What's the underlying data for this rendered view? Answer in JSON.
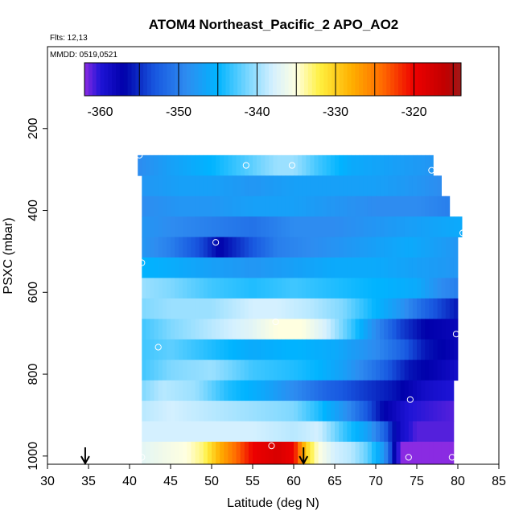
{
  "chart_data": {
    "type": "heatmap",
    "title": "ATOM4 Northeast_Pacific_2 APO_AO2",
    "annotations": {
      "flights": "Flts: 12,13",
      "dates": "MMDD: 0519,0521"
    },
    "xlabel": "Latitude (deg N)",
    "ylabel": "PSXC (mbar)",
    "xlim": [
      30,
      85
    ],
    "ylim": [
      1020,
      0
    ],
    "x_ticks": [
      30,
      35,
      40,
      45,
      50,
      55,
      60,
      65,
      70,
      75,
      80,
      85
    ],
    "y_ticks": [
      200,
      400,
      600,
      800,
      1000
    ],
    "colorbar": {
      "range": [
        -362,
        -314
      ],
      "ticks": [
        -360,
        -350,
        -340,
        -330,
        -320
      ],
      "tick_labels": [
        "-360",
        "-350",
        "-340",
        "-330",
        "-320"
      ],
      "stops": [
        {
          "v": -362,
          "c": "#8a2be2"
        },
        {
          "v": -360,
          "c": "#1e14d6"
        },
        {
          "v": -357,
          "c": "#0000aa"
        },
        {
          "v": -353,
          "c": "#1858e0"
        },
        {
          "v": -349,
          "c": "#2e8cf0"
        },
        {
          "v": -345,
          "c": "#00b4ff"
        },
        {
          "v": -341,
          "c": "#7fd8ff"
        },
        {
          "v": -338,
          "c": "#d4f0ff"
        },
        {
          "v": -335,
          "c": "#ffffe0"
        },
        {
          "v": -332,
          "c": "#fff040"
        },
        {
          "v": -328,
          "c": "#ffb000"
        },
        {
          "v": -324,
          "c": "#ff6a00"
        },
        {
          "v": -320,
          "c": "#ee0000"
        },
        {
          "v": -316,
          "c": "#c00000"
        },
        {
          "v": -314,
          "c": "#a01818"
        }
      ]
    },
    "grid": false,
    "lat_step": 0.5,
    "layers": [
      {
        "p_top": 265,
        "p_bot": 315,
        "lat0": 41,
        "lat1": 77,
        "ctrl": [
          [
            41,
            -349
          ],
          [
            45,
            -347
          ],
          [
            50,
            -345
          ],
          [
            55,
            -342
          ],
          [
            58,
            -340
          ],
          [
            60,
            -340
          ],
          [
            63,
            -343
          ],
          [
            67,
            -346
          ],
          [
            72,
            -347
          ],
          [
            77,
            -348
          ]
        ]
      },
      {
        "p_top": 315,
        "p_bot": 365,
        "lat0": 41.5,
        "lat1": 78,
        "ctrl": [
          [
            41.5,
            -348
          ],
          [
            46,
            -347
          ],
          [
            50,
            -347
          ],
          [
            55,
            -348
          ],
          [
            60,
            -347
          ],
          [
            65,
            -347
          ],
          [
            70,
            -347
          ],
          [
            75,
            -348
          ],
          [
            78,
            -349
          ]
        ]
      },
      {
        "p_top": 365,
        "p_bot": 415,
        "lat0": 41.5,
        "lat1": 79,
        "ctrl": [
          [
            41.5,
            -349
          ],
          [
            46,
            -348
          ],
          [
            50,
            -348
          ],
          [
            55,
            -347
          ],
          [
            60,
            -347
          ],
          [
            65,
            -348
          ],
          [
            70,
            -349
          ],
          [
            75,
            -349
          ],
          [
            79,
            -350
          ]
        ]
      },
      {
        "p_top": 415,
        "p_bot": 465,
        "lat0": 41.5,
        "lat1": 80.5,
        "ctrl": [
          [
            41.5,
            -348
          ],
          [
            45,
            -349
          ],
          [
            50,
            -350
          ],
          [
            55,
            -351
          ],
          [
            60,
            -349
          ],
          [
            65,
            -349
          ],
          [
            70,
            -348
          ],
          [
            75,
            -347
          ],
          [
            80.5,
            -346
          ]
        ]
      },
      {
        "p_top": 465,
        "p_bot": 515,
        "lat0": 41.5,
        "lat1": 80,
        "ctrl": [
          [
            41.5,
            -348
          ],
          [
            45,
            -350
          ],
          [
            49,
            -354
          ],
          [
            51,
            -357
          ],
          [
            54,
            -354
          ],
          [
            58,
            -350
          ],
          [
            62,
            -349
          ],
          [
            66,
            -348
          ],
          [
            70,
            -347
          ],
          [
            74,
            -346
          ],
          [
            80,
            -348
          ]
        ]
      },
      {
        "p_top": 515,
        "p_bot": 565,
        "lat0": 41.5,
        "lat1": 80,
        "ctrl": [
          [
            41.5,
            -345
          ],
          [
            46,
            -346
          ],
          [
            50,
            -347
          ],
          [
            55,
            -348
          ],
          [
            60,
            -347
          ],
          [
            65,
            -346
          ],
          [
            70,
            -346
          ],
          [
            75,
            -347
          ],
          [
            80,
            -348
          ]
        ]
      },
      {
        "p_top": 565,
        "p_bot": 615,
        "lat0": 41.5,
        "lat1": 80,
        "ctrl": [
          [
            41.5,
            -340
          ],
          [
            45,
            -341
          ],
          [
            50,
            -343
          ],
          [
            55,
            -344
          ],
          [
            60,
            -343
          ],
          [
            65,
            -344
          ],
          [
            70,
            -345
          ],
          [
            75,
            -346
          ],
          [
            78,
            -349
          ],
          [
            80,
            -350
          ]
        ]
      },
      {
        "p_top": 615,
        "p_bot": 665,
        "lat0": 41.5,
        "lat1": 80,
        "ctrl": [
          [
            41.5,
            -341
          ],
          [
            45,
            -340
          ],
          [
            50,
            -340
          ],
          [
            55,
            -338
          ],
          [
            58,
            -338
          ],
          [
            62,
            -339
          ],
          [
            66,
            -341
          ],
          [
            70,
            -345
          ],
          [
            73,
            -348
          ],
          [
            76,
            -352
          ],
          [
            80,
            -356
          ]
        ]
      },
      {
        "p_top": 665,
        "p_bot": 715,
        "lat0": 41.5,
        "lat1": 80,
        "ctrl": [
          [
            41.5,
            -343
          ],
          [
            45,
            -341
          ],
          [
            50,
            -339
          ],
          [
            55,
            -337
          ],
          [
            58,
            -335
          ],
          [
            61,
            -335
          ],
          [
            64,
            -338
          ],
          [
            67,
            -343
          ],
          [
            70,
            -349
          ],
          [
            73,
            -354
          ],
          [
            76,
            -357
          ],
          [
            80,
            -358
          ]
        ]
      },
      {
        "p_top": 715,
        "p_bot": 765,
        "lat0": 41.5,
        "lat1": 80,
        "ctrl": [
          [
            41.5,
            -343
          ],
          [
            45,
            -342
          ],
          [
            50,
            -344
          ],
          [
            55,
            -346
          ],
          [
            60,
            -345
          ],
          [
            65,
            -346
          ],
          [
            70,
            -349
          ],
          [
            73,
            -352
          ],
          [
            76,
            -356
          ],
          [
            80,
            -358
          ]
        ]
      },
      {
        "p_top": 765,
        "p_bot": 815,
        "lat0": 41.5,
        "lat1": 80,
        "ctrl": [
          [
            41.5,
            -343
          ],
          [
            45,
            -341
          ],
          [
            50,
            -340
          ],
          [
            55,
            -343
          ],
          [
            60,
            -344
          ],
          [
            63,
            -345
          ],
          [
            66,
            -347
          ],
          [
            70,
            -351
          ],
          [
            74,
            -356
          ],
          [
            78,
            -358
          ],
          [
            80,
            -359
          ]
        ]
      },
      {
        "p_top": 815,
        "p_bot": 865,
        "lat0": 41.5,
        "lat1": 79.5,
        "ctrl": [
          [
            41.5,
            -341
          ],
          [
            44,
            -339
          ],
          [
            48,
            -340
          ],
          [
            52,
            -344
          ],
          [
            56,
            -346
          ],
          [
            60,
            -349
          ],
          [
            64,
            -352
          ],
          [
            68,
            -354
          ],
          [
            72,
            -356
          ],
          [
            76,
            -359
          ],
          [
            79.5,
            -360
          ]
        ]
      },
      {
        "p_top": 865,
        "p_bot": 915,
        "lat0": 41.5,
        "lat1": 79.5,
        "ctrl": [
          [
            41.5,
            -339
          ],
          [
            45,
            -338
          ],
          [
            50,
            -339
          ],
          [
            55,
            -340
          ],
          [
            60,
            -341
          ],
          [
            63,
            -344
          ],
          [
            66,
            -348
          ],
          [
            69,
            -353
          ],
          [
            71,
            -357
          ],
          [
            74,
            -360
          ],
          [
            79.5,
            -361
          ]
        ]
      },
      {
        "p_top": 915,
        "p_bot": 965,
        "lat0": 41.5,
        "lat1": 79.5,
        "ctrl": [
          [
            41.5,
            -338
          ],
          [
            45,
            -338
          ],
          [
            50,
            -338
          ],
          [
            55,
            -338
          ],
          [
            60,
            -339
          ],
          [
            63,
            -338
          ],
          [
            66,
            -343
          ],
          [
            69,
            -347
          ],
          [
            71,
            -352
          ],
          [
            73,
            -359
          ],
          [
            75,
            -361
          ],
          [
            79.5,
            -361
          ]
        ]
      },
      {
        "p_top": 965,
        "p_bot": 1020,
        "lat0": 41.5,
        "lat1": 79.5,
        "ctrl": [
          [
            41.5,
            -337
          ],
          [
            44,
            -336
          ],
          [
            47,
            -335
          ],
          [
            49,
            -333
          ],
          [
            51,
            -328
          ],
          [
            53,
            -324
          ],
          [
            55,
            -320
          ],
          [
            58,
            -318
          ],
          [
            60,
            -320
          ],
          [
            61.5,
            -330
          ],
          [
            63,
            -335
          ],
          [
            65,
            -338
          ],
          [
            67,
            -339
          ],
          [
            69,
            -342
          ],
          [
            71,
            -348
          ],
          [
            72,
            -355
          ],
          [
            73,
            -362
          ],
          [
            79.5,
            -362
          ]
        ]
      }
    ],
    "points": [
      {
        "lat": 41.2,
        "p": 265
      },
      {
        "lat": 54.2,
        "p": 290
      },
      {
        "lat": 59.8,
        "p": 290
      },
      {
        "lat": 76.8,
        "p": 302
      },
      {
        "lat": 80.6,
        "p": 455
      },
      {
        "lat": 50.5,
        "p": 478
      },
      {
        "lat": 41.5,
        "p": 528
      },
      {
        "lat": 57.8,
        "p": 672
      },
      {
        "lat": 79.8,
        "p": 702
      },
      {
        "lat": 43.5,
        "p": 734
      },
      {
        "lat": 74.2,
        "p": 862
      },
      {
        "lat": 57.3,
        "p": 975
      },
      {
        "lat": 41.5,
        "p": 1003
      },
      {
        "lat": 74.0,
        "p": 1003
      },
      {
        "lat": 79.3,
        "p": 1003
      }
    ],
    "arrows_lat": [
      34.6,
      61.2
    ]
  }
}
